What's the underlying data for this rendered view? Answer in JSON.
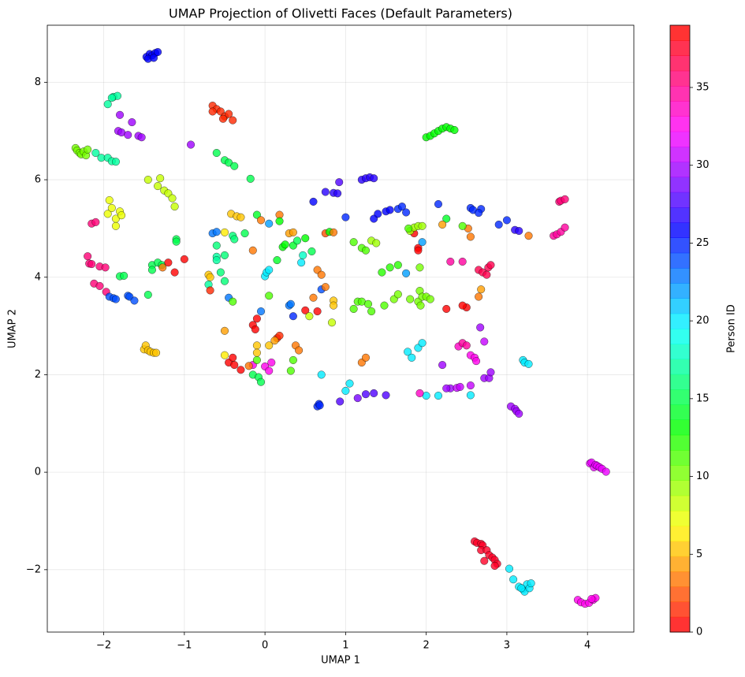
{
  "chart_data": {
    "type": "scatter",
    "title": "UMAP Projection of Olivetti Faces (Default Parameters)",
    "x_label": "UMAP 1",
    "y_label": "UMAP 2",
    "colorbar_label": "Person ID",
    "cmap": "hsv",
    "clim": [
      0,
      39
    ],
    "grid": true,
    "xlim": [
      -2.7,
      4.575
    ],
    "ylim": [
      -3.28,
      9.17
    ],
    "xticks": [
      {
        "value": -2,
        "label": "−2"
      },
      {
        "value": -1,
        "label": "−1"
      },
      0,
      1,
      2,
      3,
      4
    ],
    "yticks": [
      {
        "value": -2,
        "label": "−2"
      },
      0,
      2,
      4,
      6,
      8
    ],
    "cticks": [
      0,
      5,
      10,
      15,
      20,
      25,
      30,
      35
    ],
    "x": [
      -1.47,
      -1.43,
      -1.4,
      -1.36,
      -1.45,
      -1.38,
      -1.33,
      -0.65,
      -0.6,
      -0.55,
      -0.5,
      -0.45,
      -0.4,
      -0.52,
      -0.65,
      2.0,
      2.05,
      2.1,
      2.15,
      2.2,
      2.25,
      2.3,
      2.35,
      -1.95,
      -1.88,
      -1.83,
      -1.9,
      -1.8,
      -1.82,
      -1.78,
      -1.7,
      -1.65,
      -1.57,
      -1.53,
      -0.92,
      -2.35,
      -2.33,
      -2.3,
      -2.28,
      -2.25,
      -2.22,
      -2.2,
      -2.1,
      -2.03,
      -1.95,
      -1.9,
      -1.85,
      -0.6,
      -0.5,
      -0.45,
      -0.38,
      -0.18,
      -1.45,
      -1.3,
      -1.33,
      -1.25,
      -1.2,
      -1.15,
      -1.12,
      -1.93,
      -1.95,
      -1.9,
      -1.85,
      -1.8,
      -1.78,
      -1.85,
      -2.15,
      -2.1,
      -2.2,
      -2.18,
      -2.15,
      -2.05,
      -1.98,
      -2.12,
      -2.05,
      -1.97,
      -1.93,
      -1.88,
      -1.85,
      -1.7,
      -1.68,
      -1.62,
      -1.8,
      -1.75,
      -1.4,
      -1.4,
      -1.33,
      -1.28,
      -1.1,
      -1.1,
      -1.45,
      -1.2,
      -1.12,
      -1.0,
      -1.27,
      -1.5,
      -1.48,
      -1.45,
      -1.42,
      -1.38,
      -1.35,
      -0.65,
      -0.6,
      -0.5,
      -0.6,
      -0.5,
      -0.6,
      -0.6,
      -0.4,
      -0.38,
      -0.25,
      -0.42,
      -0.35,
      -0.3,
      -0.1,
      -0.05,
      0.05,
      0.18,
      0.18,
      -0.15,
      0.15,
      0.22,
      0.25,
      0.3,
      0.35,
      0.35,
      0.4,
      0.45,
      0.47,
      0.5,
      0.58,
      0.6,
      0.65,
      0.7,
      0.7,
      0.75,
      0.8,
      0.85,
      0.75,
      0.85,
      0.85,
      0.83,
      0.65,
      0.5,
      0.0,
      0.02,
      0.05,
      -0.05,
      -0.1,
      -0.15,
      -0.12,
      0.05,
      0.3,
      0.32,
      0.35,
      0.55,
      0.38,
      0.42,
      0.15,
      0.18,
      0.12,
      -0.1,
      -0.1,
      0.05,
      -0.15,
      0.0,
      0.08,
      0.05,
      -0.5,
      -0.45,
      -0.4,
      -0.38,
      -0.3,
      -0.2,
      -0.15,
      -0.08,
      -0.05,
      0.32,
      0.35,
      -0.1,
      -0.5,
      -0.45,
      -0.4,
      -0.5,
      -0.55,
      -0.7,
      -0.68,
      -0.7,
      -0.68,
      0.7,
      0.65,
      0.67,
      0.68,
      0.93,
      1.0,
      1.05,
      1.15,
      1.25,
      1.35,
      1.5,
      0.92,
      0.75,
      0.85,
      0.9,
      0.6,
      1.0,
      1.2,
      1.25,
      1.3,
      1.35,
      1.35,
      1.4,
      1.5,
      1.55,
      1.65,
      1.7,
      1.75,
      1.85,
      2.15,
      1.1,
      1.2,
      1.25,
      1.32,
      1.38,
      1.45,
      1.55,
      1.65,
      1.6,
      1.65,
      1.75,
      1.8,
      1.85,
      1.9,
      1.95,
      1.78,
      1.9,
      1.9,
      1.95,
      1.92,
      1.1,
      1.15,
      1.2,
      1.28,
      1.32,
      1.48,
      1.2,
      1.25,
      1.8,
      1.9,
      1.93,
      1.92,
      1.95,
      2.0,
      2.05,
      2.25,
      2.3,
      2.45,
      2.5,
      2.45,
      2.65,
      2.68,
      2.52,
      2.55,
      2.45,
      2.25,
      2.2,
      1.77,
      1.82,
      1.9,
      1.95,
      2.0,
      2.15,
      1.92,
      2.2,
      2.3,
      2.25,
      2.38,
      2.42,
      2.55,
      2.55,
      2.4,
      2.45,
      2.5,
      2.55,
      2.6,
      2.62,
      2.67,
      2.72,
      2.72,
      2.78,
      2.8,
      2.55,
      2.58,
      2.68,
      2.65,
      2.9,
      3.0,
      3.1,
      3.15,
      3.27,
      2.65,
      2.7,
      2.75,
      2.77,
      2.8,
      3.05,
      3.1,
      3.12,
      3.15,
      3.2,
      3.22,
      3.27,
      3.65,
      3.67,
      3.72,
      3.58,
      3.62,
      3.67,
      3.72,
      4.03,
      4.05,
      4.08,
      4.1,
      4.12,
      4.15,
      4.18,
      4.23,
      2.6,
      2.63,
      2.68,
      2.7,
      2.68,
      2.75,
      2.78,
      2.82,
      2.85,
      2.88,
      2.85,
      2.72,
      3.03,
      3.08,
      3.15,
      3.2,
      3.22,
      3.25,
      3.28,
      3.3,
      3.18,
      3.88,
      3.92,
      3.97,
      4.02,
      4.07,
      4.1,
      4.05
    ],
    "values": [
      8.52,
      8.58,
      8.55,
      8.6,
      8.48,
      8.5,
      8.62,
      7.52,
      7.45,
      7.4,
      7.3,
      7.35,
      7.22,
      7.25,
      7.4,
      6.87,
      6.9,
      6.95,
      7.0,
      7.05,
      7.08,
      7.05,
      7.02,
      7.55,
      7.7,
      7.72,
      7.68,
      7.33,
      7.0,
      6.97,
      6.92,
      7.18,
      6.9,
      6.87,
      6.72,
      6.65,
      6.6,
      6.55,
      6.52,
      6.58,
      6.5,
      6.62,
      6.55,
      6.45,
      6.45,
      6.38,
      6.37,
      6.55,
      6.4,
      6.35,
      6.28,
      6.02,
      6.0,
      6.03,
      5.87,
      5.78,
      5.72,
      5.62,
      5.45,
      5.58,
      5.3,
      5.42,
      5.2,
      5.35,
      5.27,
      5.05,
      5.1,
      5.13,
      4.43,
      4.28,
      4.27,
      4.22,
      4.2,
      3.87,
      3.82,
      3.7,
      3.6,
      3.57,
      3.55,
      3.62,
      3.6,
      3.52,
      4.02,
      4.03,
      4.25,
      4.15,
      4.3,
      4.25,
      4.78,
      4.73,
      3.64,
      4.3,
      4.1,
      4.37,
      4.2,
      2.52,
      2.6,
      2.5,
      2.47,
      2.45,
      2.45,
      4.9,
      4.93,
      4.92,
      4.65,
      4.45,
      4.42,
      4.35,
      4.85,
      4.78,
      4.9,
      5.3,
      5.25,
      5.23,
      5.28,
      5.17,
      5.1,
      5.28,
      5.15,
      4.55,
      4.35,
      4.62,
      4.67,
      4.9,
      4.92,
      4.65,
      4.75,
      4.3,
      4.45,
      4.8,
      4.53,
      3.58,
      4.15,
      4.05,
      3.75,
      4.9,
      4.93,
      4.92,
      3.8,
      3.52,
      3.42,
      3.07,
      3.3,
      3.32,
      4.02,
      4.1,
      4.15,
      3.3,
      3.15,
      3.02,
      2.93,
      3.62,
      3.42,
      3.45,
      3.2,
      3.2,
      2.6,
      2.5,
      2.75,
      2.8,
      2.7,
      2.6,
      2.45,
      2.6,
      2.2,
      2.17,
      2.25,
      2.08,
      2.4,
      2.25,
      2.35,
      2.2,
      2.1,
      2.18,
      2.0,
      1.95,
      1.85,
      2.08,
      2.3,
      2.3,
      2.9,
      3.58,
      3.5,
      3.92,
      4.1,
      4.05,
      4.0,
      3.85,
      3.73,
      2.0,
      1.35,
      1.4,
      1.37,
      1.45,
      1.67,
      1.82,
      1.52,
      1.6,
      1.62,
      1.58,
      5.95,
      5.75,
      5.73,
      5.72,
      5.55,
      5.23,
      6.0,
      6.03,
      6.05,
      6.03,
      5.2,
      5.3,
      5.35,
      5.38,
      5.4,
      5.45,
      5.33,
      4.9,
      5.5,
      4.72,
      4.6,
      4.55,
      4.75,
      4.7,
      4.1,
      4.2,
      4.25,
      3.55,
      3.65,
      4.08,
      4.95,
      5.02,
      5.05,
      5.05,
      5.0,
      4.6,
      4.55,
      4.72,
      4.2,
      3.35,
      3.5,
      3.5,
      3.45,
      3.3,
      3.42,
      2.25,
      2.35,
      3.55,
      3.5,
      3.42,
      3.72,
      3.6,
      3.6,
      3.55,
      3.35,
      4.32,
      4.32,
      3.38,
      3.42,
      3.6,
      3.75,
      5.0,
      4.83,
      5.05,
      5.2,
      5.08,
      2.47,
      2.35,
      2.55,
      2.65,
      1.57,
      1.57,
      1.62,
      2.2,
      1.72,
      1.72,
      1.73,
      1.75,
      1.78,
      1.58,
      2.58,
      2.65,
      2.6,
      2.4,
      2.35,
      2.28,
      2.97,
      2.68,
      1.93,
      1.93,
      2.05,
      5.42,
      5.38,
      5.4,
      5.32,
      5.08,
      5.17,
      4.97,
      4.95,
      4.85,
      4.15,
      4.1,
      4.05,
      4.2,
      4.25,
      1.35,
      1.3,
      1.25,
      1.2,
      2.3,
      2.25,
      2.22,
      5.55,
      5.57,
      5.6,
      4.85,
      4.88,
      4.93,
      5.02,
      0.18,
      0.2,
      0.1,
      0.15,
      0.13,
      0.1,
      0.07,
      0.01,
      -1.42,
      -1.45,
      -1.47,
      -1.5,
      -1.6,
      -1.6,
      -1.7,
      -1.75,
      -1.8,
      -1.88,
      -1.92,
      -1.82,
      -1.98,
      -2.2,
      -2.35,
      -2.4,
      -2.45,
      -2.3,
      -2.38,
      -2.28,
      -2.38,
      -2.62,
      -2.67,
      -2.7,
      -2.68,
      -2.62,
      -2.58,
      -2.6
    ],
    "c": [
      26,
      26,
      26,
      26,
      26,
      26,
      26,
      1,
      1,
      1,
      1,
      1,
      1,
      1,
      1,
      13,
      13,
      13,
      13,
      13,
      13,
      13,
      13,
      17,
      17,
      17,
      17,
      30,
      30,
      30,
      30,
      30,
      30,
      30,
      30,
      10,
      10,
      10,
      10,
      10,
      10,
      10,
      17,
      17,
      17,
      17,
      17,
      15,
      15,
      15,
      15,
      15,
      8,
      8,
      8,
      8,
      8,
      8,
      8,
      7,
      7,
      7,
      7,
      7,
      7,
      7,
      36,
      36,
      36,
      36,
      36,
      36,
      36,
      36,
      36,
      36,
      24,
      24,
      24,
      24,
      24,
      24,
      15,
      15,
      15,
      15,
      15,
      15,
      15,
      15,
      15,
      0,
      0,
      0,
      3,
      5,
      5,
      5,
      5,
      5,
      5,
      23,
      23,
      6,
      16,
      16,
      17,
      17,
      16,
      16,
      15,
      5,
      5,
      5,
      14,
      3,
      22,
      3,
      13,
      3,
      14,
      13,
      13,
      4,
      4,
      14,
      15,
      20,
      18,
      13,
      15,
      3,
      3,
      3,
      24,
      2,
      13,
      3,
      3,
      5,
      5,
      8,
      0,
      0,
      20,
      20,
      20,
      23,
      0,
      0,
      0,
      11,
      23,
      23,
      25,
      8,
      3,
      3,
      1,
      1,
      4,
      5,
      5,
      5,
      33,
      33,
      33,
      33,
      6,
      0,
      0,
      0,
      0,
      3,
      15,
      15,
      15,
      11,
      11,
      11,
      4,
      23,
      11,
      16,
      16,
      5,
      5,
      17,
      1,
      20,
      25,
      25,
      25,
      28,
      20,
      20,
      29,
      28,
      28,
      28,
      28,
      27,
      27,
      27,
      26,
      25,
      27,
      27,
      27,
      27,
      26,
      26,
      26,
      26,
      25,
      25,
      25,
      0,
      25,
      11,
      11,
      11,
      9,
      9,
      12,
      12,
      12,
      10,
      10,
      22,
      9,
      9,
      9,
      9,
      11,
      0,
      0,
      22,
      10,
      11,
      11,
      11,
      11,
      11,
      11,
      3,
      3,
      10,
      10,
      10,
      10,
      10,
      10,
      10,
      0,
      35,
      35,
      0,
      0,
      3,
      4,
      3,
      3,
      11,
      14,
      4,
      20,
      20,
      20,
      20,
      20,
      20,
      34,
      30,
      30,
      30,
      31,
      31,
      31,
      20,
      34,
      35,
      35,
      33,
      33,
      33,
      30,
      31,
      30,
      30,
      30,
      25,
      25,
      25,
      25,
      25,
      25,
      27,
      27,
      3,
      37,
      37,
      37,
      37,
      37,
      30,
      30,
      30,
      30,
      20,
      20,
      20,
      36,
      36,
      36,
      35,
      35,
      35,
      35,
      32,
      32,
      32,
      32,
      32,
      32,
      32,
      32,
      38,
      38,
      38,
      38,
      38,
      38,
      38,
      38,
      38,
      38,
      38,
      38,
      20,
      20,
      20,
      20,
      20,
      20,
      20,
      20,
      20,
      33,
      33,
      33,
      33,
      33,
      33,
      33
    ]
  }
}
